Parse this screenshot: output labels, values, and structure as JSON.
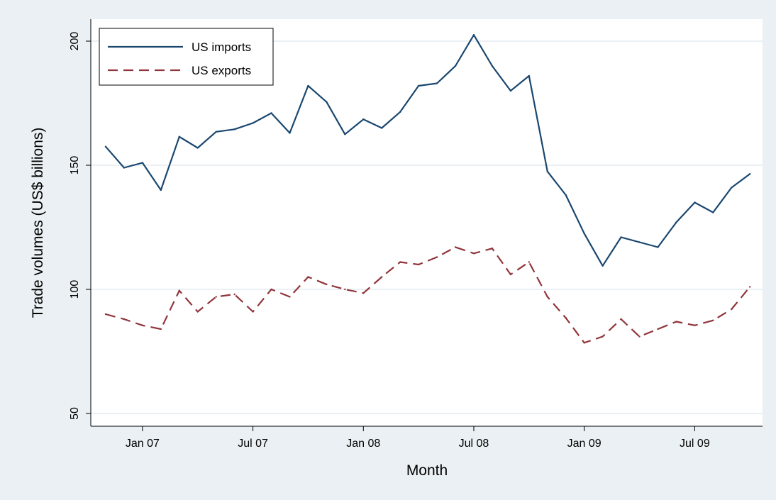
{
  "chart_data": {
    "type": "line",
    "title": "",
    "xlabel": "Month",
    "ylabel": "Trade volumes (US$ billions)",
    "x_tick_labels": [
      "Jan 07",
      "Jul 07",
      "Jan 08",
      "Jul 08",
      "Jan 09",
      "Jul 09"
    ],
    "y_ticks": [
      50,
      100,
      150,
      200
    ],
    "ylim": [
      45,
      205
    ],
    "x_months": [
      "2006-11",
      "2006-12",
      "2007-01",
      "2007-02",
      "2007-03",
      "2007-04",
      "2007-05",
      "2007-06",
      "2007-07",
      "2007-08",
      "2007-09",
      "2007-10",
      "2007-11",
      "2007-12",
      "2008-01",
      "2008-02",
      "2008-03",
      "2008-04",
      "2008-05",
      "2008-06",
      "2008-07",
      "2008-08",
      "2008-09",
      "2008-10",
      "2008-11",
      "2008-12",
      "2009-01",
      "2009-02",
      "2009-03",
      "2009-04",
      "2009-05",
      "2009-06",
      "2009-07",
      "2009-08",
      "2009-09",
      "2009-10"
    ],
    "grid": "horizontal",
    "legend_position": "top-left",
    "series": [
      {
        "name": "US imports",
        "color": "#1a476f",
        "style": "solid",
        "values": [
          157.5,
          149,
          151,
          140,
          161.5,
          157,
          163.5,
          164.5,
          167,
          171,
          163,
          182,
          175.5,
          162.5,
          168.5,
          165,
          171.5,
          182,
          183,
          190,
          202.5,
          190,
          180,
          186,
          147.5,
          138,
          122.5,
          109.5,
          121,
          119,
          117,
          127,
          135,
          131,
          141,
          146.5
        ]
      },
      {
        "name": "US exports",
        "color": "#90353b",
        "style": "dashed",
        "values": [
          90,
          88,
          85.5,
          84,
          99.5,
          91,
          97,
          98,
          91,
          100,
          97,
          105,
          102,
          100,
          98.5,
          105,
          111,
          110,
          113,
          117,
          114.5,
          116.5,
          106,
          111,
          97,
          88.5,
          78.5,
          81,
          88,
          81,
          84,
          87,
          85.5,
          87.5,
          92,
          101
        ]
      }
    ]
  }
}
